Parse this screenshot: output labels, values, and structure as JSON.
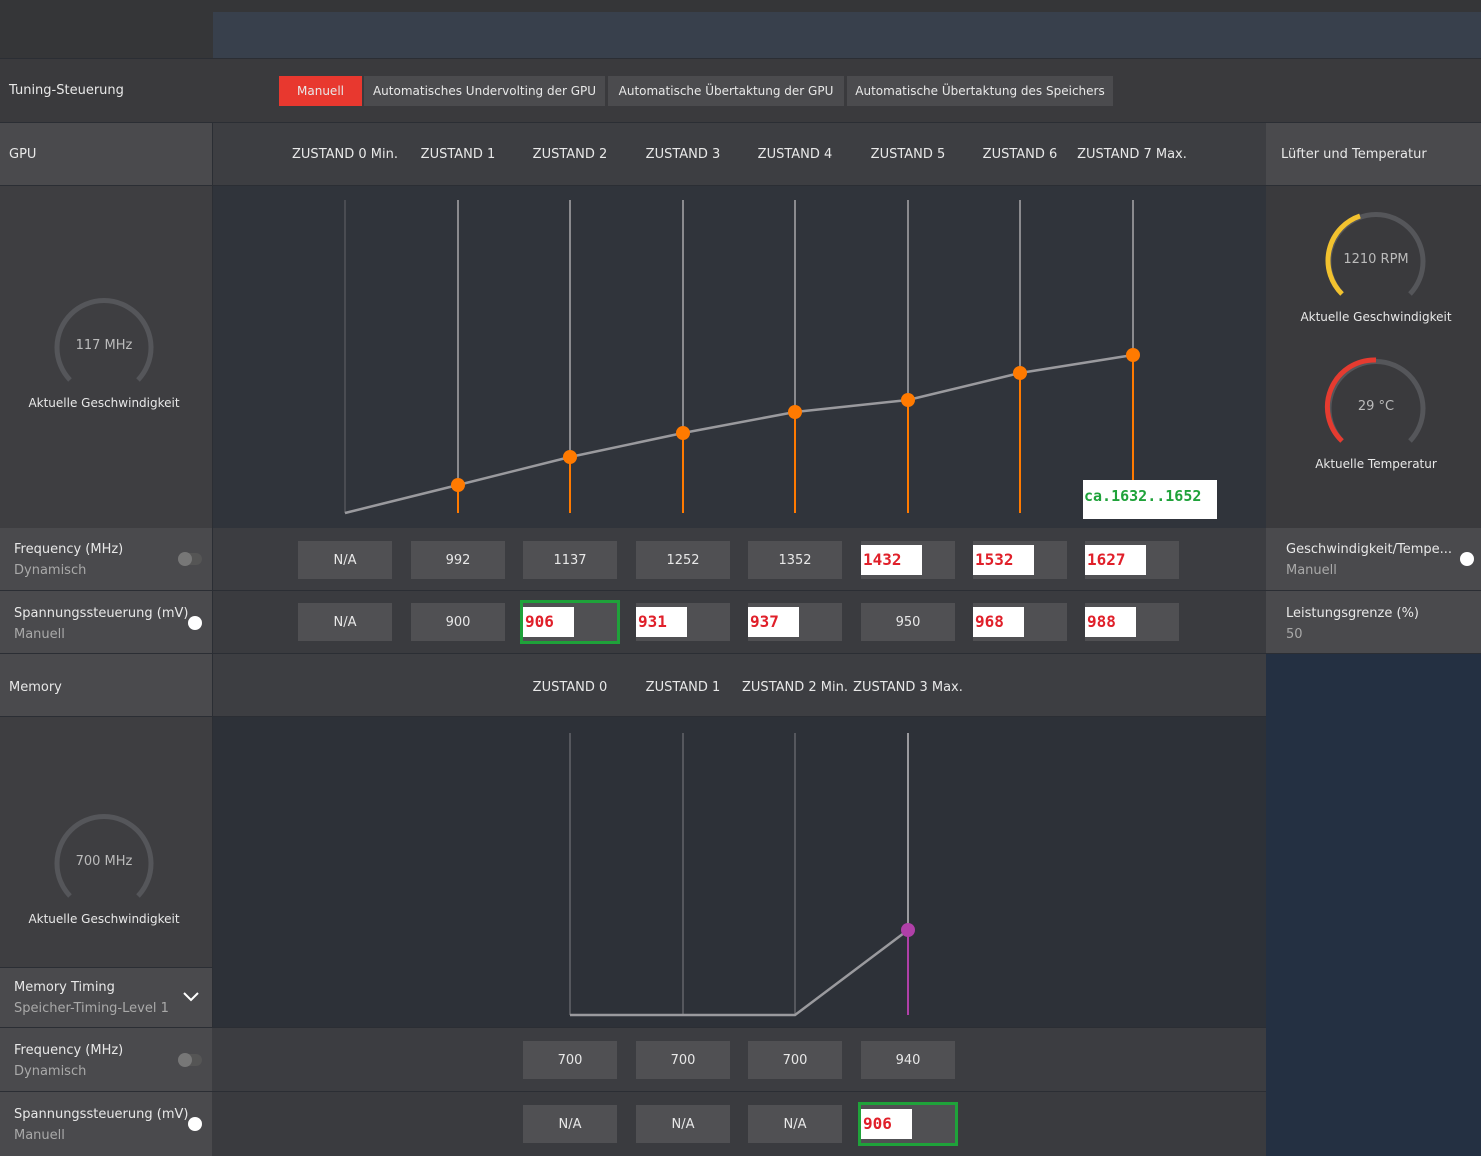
{
  "tuning": {
    "label": "Tuning-Steuerung",
    "tabs": [
      "Manuell",
      "Automatisches Undervolting der GPU",
      "Automatische Übertaktung der GPU",
      "Automatische Übertaktung des Speichers"
    ]
  },
  "gpu": {
    "label": "GPU",
    "states": [
      "ZUSTAND 0 Min.",
      "ZUSTAND 1",
      "ZUSTAND 2",
      "ZUSTAND 3",
      "ZUSTAND 4",
      "ZUSTAND 5",
      "ZUSTAND 6",
      "ZUSTAND 7 Max."
    ],
    "speed": "117 MHz",
    "speed_label": "Aktuelle Geschwindigkeit",
    "annotation": "ca.1632..1652",
    "frequency": {
      "label": "Frequency (MHz)",
      "mode": "Dynamisch",
      "values": [
        "N/A",
        992,
        1137,
        1252,
        1352,
        1432,
        1532,
        1627
      ]
    },
    "voltage": {
      "label": "Spannungssteuerung (mV)",
      "mode": "Manuell",
      "values": [
        "N/A",
        900,
        906,
        931,
        937,
        950,
        968,
        988
      ]
    }
  },
  "fan": {
    "label": "Lüfter und Temperatur",
    "rpm": "1210 RPM",
    "rpm_label": "Aktuelle Geschwindigkeit",
    "temp": "29 °C",
    "temp_label": "Aktuelle Temperatur",
    "speed_temp": {
      "label": "Geschwindigkeit/Tempe...",
      "mode": "Manuell"
    },
    "power_limit": {
      "label": "Leistungsgrenze (%)",
      "value": 50
    }
  },
  "memory": {
    "label": "Memory",
    "states": [
      "ZUSTAND 0",
      "ZUSTAND 1",
      "ZUSTAND 2 Min.",
      "ZUSTAND 3 Max."
    ],
    "speed": "700 MHz",
    "speed_label": "Aktuelle Geschwindigkeit",
    "timing": {
      "label": "Memory Timing",
      "value": "Speicher-Timing-Level 1"
    },
    "frequency": {
      "label": "Frequency (MHz)",
      "mode": "Dynamisch",
      "values": [
        700,
        700,
        700,
        940
      ]
    },
    "voltage": {
      "label": "Spannungssteuerung (mV)",
      "mode": "Manuell",
      "values": [
        "N/A",
        "N/A",
        "N/A",
        906
      ]
    }
  }
}
